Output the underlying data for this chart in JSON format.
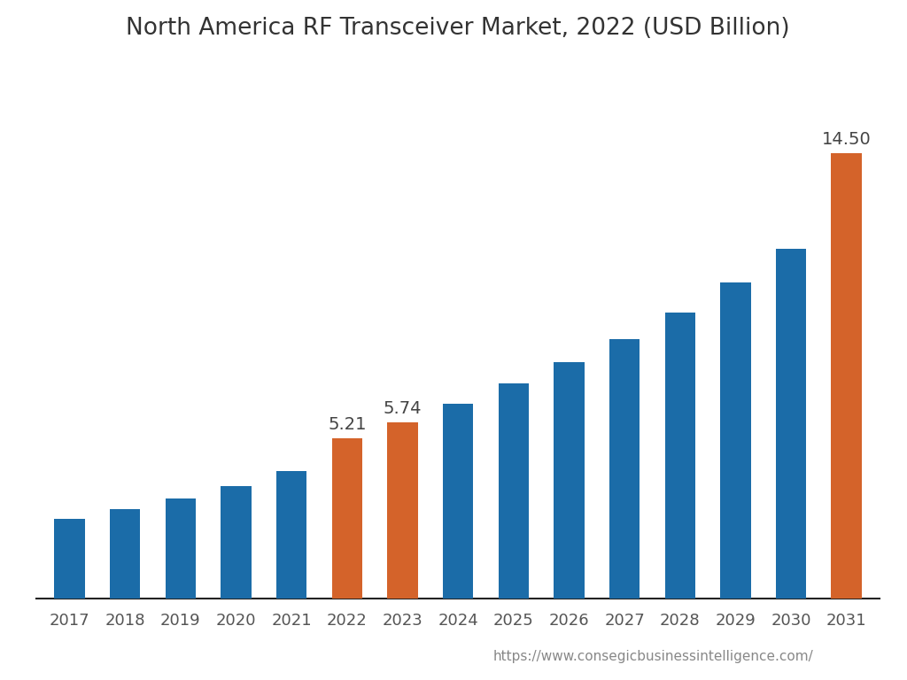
{
  "title": "North America RF Transceiver Market, 2022 (USD Billion)",
  "years": [
    2017,
    2018,
    2019,
    2020,
    2021,
    2022,
    2023,
    2024,
    2025,
    2026,
    2027,
    2028,
    2029,
    2030,
    2031
  ],
  "values": [
    2.6,
    2.9,
    3.25,
    3.65,
    4.15,
    5.21,
    5.74,
    6.35,
    7.0,
    7.7,
    8.45,
    9.3,
    10.3,
    11.4,
    14.5
  ],
  "bar_colors": [
    "#1b6ca8",
    "#1b6ca8",
    "#1b6ca8",
    "#1b6ca8",
    "#1b6ca8",
    "#d4632a",
    "#d4632a",
    "#1b6ca8",
    "#1b6ca8",
    "#1b6ca8",
    "#1b6ca8",
    "#1b6ca8",
    "#1b6ca8",
    "#1b6ca8",
    "#d4632a"
  ],
  "labeled_bars": {
    "2022": "5.21",
    "2023": "5.74",
    "2031": "14.50"
  },
  "url": "https://www.consegicbusinessintelligence.com/",
  "background_color": "#ffffff",
  "title_fontsize": 19,
  "tick_fontsize": 13,
  "label_fontsize": 14,
  "url_fontsize": 11,
  "ylim": [
    0,
    17.5
  ],
  "bar_width": 0.55
}
